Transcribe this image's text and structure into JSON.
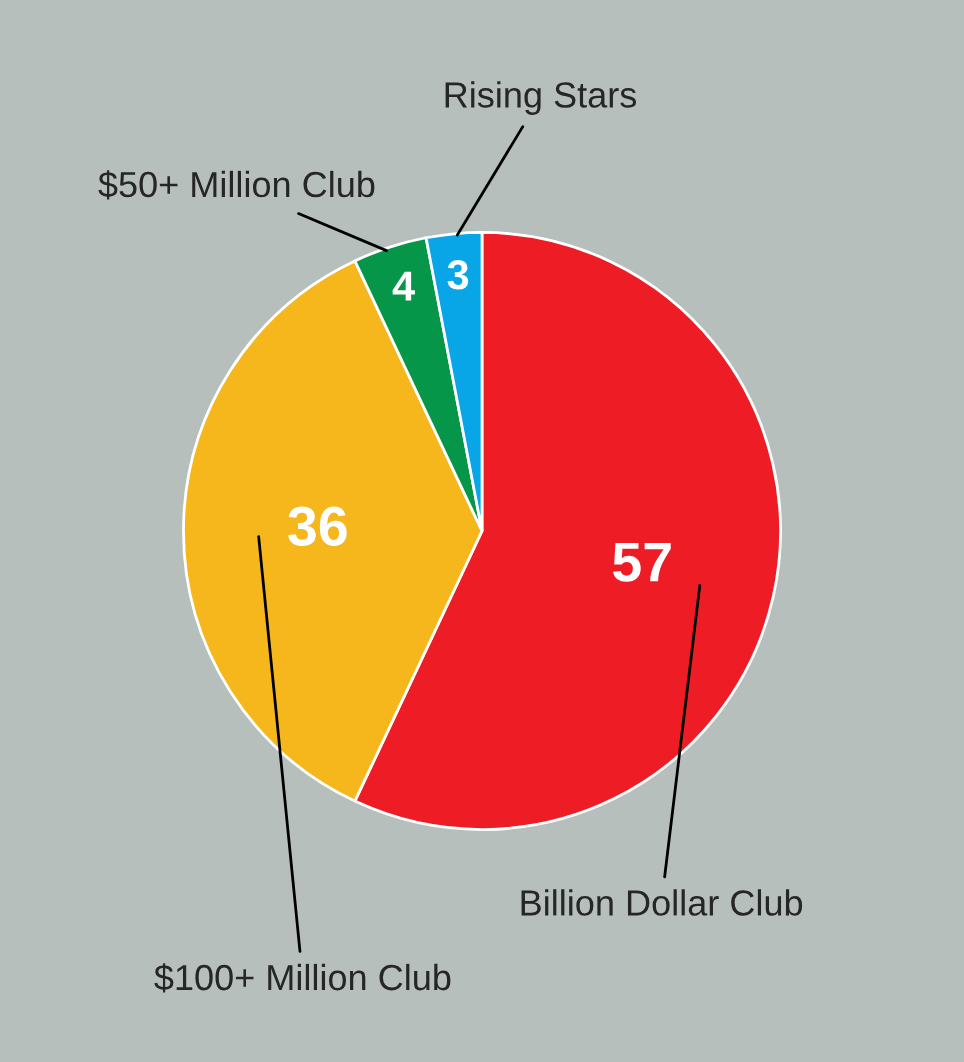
{
  "chart_data": {
    "type": "pie",
    "categories": [
      "Billion Dollar Club",
      "$100+ Million Club",
      "$50+ Million Club",
      "Rising Stars"
    ],
    "values": [
      57,
      36,
      4,
      3
    ],
    "colors": [
      "#ee1c25",
      "#f5b71b",
      "#05964a",
      "#08a6e6"
    ],
    "data_labels": true
  }
}
